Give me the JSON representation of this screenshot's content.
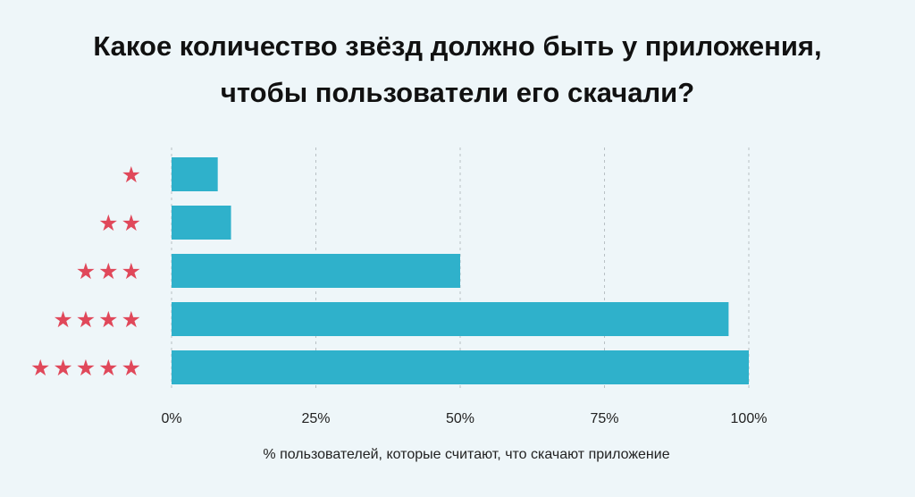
{
  "chart_data": {
    "type": "bar",
    "orientation": "horizontal",
    "title_lines": [
      "Какое количество звёзд должно быть у приложения,",
      "чтобы пользователи его скачали?"
    ],
    "categories": [
      "★",
      "★★",
      "★★★",
      "★★★★",
      "★★★★★"
    ],
    "values": [
      8,
      10.3,
      50,
      96.5,
      100
    ],
    "xlabel": "% пользователей, которые считают, что скачают приложение",
    "ylabel": "",
    "xlim": [
      0,
      100
    ],
    "xticks": [
      0,
      25,
      50,
      75,
      100
    ],
    "xtick_labels": [
      "0%",
      "25%",
      "50%",
      "75%",
      "100%"
    ],
    "grid": "vertical-dotted",
    "legend": "none",
    "colors": {
      "bar": "#2fb1cb",
      "star": "#e0485a",
      "background": "#eef6f9"
    }
  }
}
